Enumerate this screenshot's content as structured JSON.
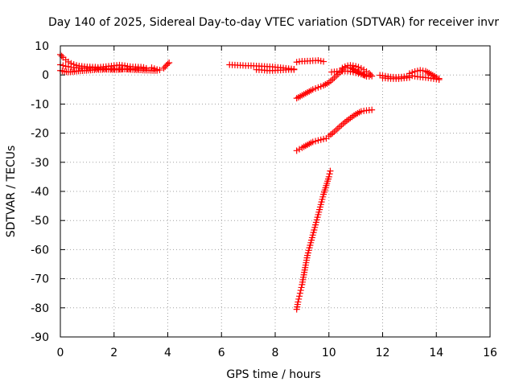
{
  "chart_data": {
    "type": "scatter",
    "title": "Day 140 of 2025, Sidereal Day-to-day VTEC variation (SDTVAR) for receiver invr",
    "xlabel": "GPS time / hours",
    "ylabel": "SDTVAR / TECUs",
    "xlim": [
      0,
      16
    ],
    "ylim": [
      -90,
      10
    ],
    "xticks": [
      "0",
      "2",
      "4",
      "6",
      "8",
      "10",
      "12",
      "14",
      "16"
    ],
    "yticks": [
      "10",
      "0",
      "-10",
      "-20",
      "-30",
      "-40",
      "-50",
      "-60",
      "-70",
      "-80",
      "-90"
    ],
    "grid": true,
    "marker": "+",
    "color": "#ff0000",
    "series": [
      {
        "name": "arc1",
        "x": [
          0.0,
          0.1,
          0.2,
          0.3,
          0.4,
          0.5,
          0.6,
          0.7,
          0.8,
          0.9,
          1.0,
          1.1,
          1.2,
          1.3,
          1.4,
          1.5,
          1.6,
          1.7,
          1.8,
          1.9,
          2.0,
          2.1,
          2.2,
          2.3,
          2.4,
          2.5,
          2.6,
          2.7,
          2.8,
          2.9,
          3.0,
          3.1
        ],
        "y": [
          7.0,
          6.0,
          5.2,
          4.5,
          4.0,
          3.6,
          3.3,
          3.1,
          3.0,
          2.9,
          2.8,
          2.8,
          2.7,
          2.7,
          2.6,
          2.7,
          2.8,
          2.9,
          3.0,
          3.1,
          3.2,
          3.3,
          3.4,
          3.3,
          3.2,
          3.0,
          2.9,
          2.8,
          2.8,
          2.7,
          2.7,
          2.6
        ]
      },
      {
        "name": "arc2",
        "x": [
          0.0,
          0.15,
          0.3,
          0.45,
          0.6,
          0.75,
          0.9,
          1.05,
          1.2,
          1.35,
          1.5,
          1.65,
          1.8,
          1.95,
          2.1,
          2.25,
          2.4,
          2.55,
          2.7,
          2.85,
          3.0,
          3.15,
          3.3,
          3.45,
          3.6
        ],
        "y": [
          1.5,
          1.2,
          1.0,
          1.1,
          1.3,
          1.4,
          1.5,
          1.6,
          1.7,
          1.8,
          1.8,
          1.9,
          1.9,
          1.8,
          1.8,
          1.9,
          2.0,
          1.9,
          1.8,
          1.7,
          1.7,
          1.6,
          1.6,
          1.5,
          1.5
        ]
      },
      {
        "name": "arc3",
        "x": [
          0.0,
          0.2,
          0.4,
          0.6,
          0.8,
          1.0,
          1.2,
          1.4,
          1.6,
          1.8,
          2.0,
          2.2,
          2.4,
          2.6,
          2.8,
          3.0,
          3.2
        ],
        "y": [
          3.5,
          3.0,
          2.7,
          2.5,
          2.4,
          2.3,
          2.3,
          2.2,
          2.2,
          2.1,
          2.1,
          2.0,
          2.0,
          2.1,
          2.2,
          2.2,
          2.3
        ]
      },
      {
        "name": "arc4",
        "x": [
          3.4,
          3.5,
          3.6,
          3.7
        ],
        "y": [
          2.5,
          2.2,
          1.9,
          1.7
        ]
      },
      {
        "name": "arc5",
        "x": [
          3.85,
          3.9,
          3.95,
          4.0,
          4.05
        ],
        "y": [
          2.3,
          2.8,
          3.3,
          3.8,
          4.2
        ]
      },
      {
        "name": "arc6",
        "x": [
          6.3,
          6.5,
          6.7,
          6.9,
          7.1,
          7.3,
          7.5,
          7.7,
          7.9,
          8.1,
          8.3,
          8.5,
          8.7
        ],
        "y": [
          3.5,
          3.4,
          3.3,
          3.2,
          3.2,
          3.1,
          3.0,
          2.9,
          2.8,
          2.6,
          2.4,
          2.2,
          2.0
        ]
      },
      {
        "name": "arc7",
        "x": [
          7.3,
          7.5,
          7.7,
          7.9,
          8.1,
          8.3,
          8.5,
          8.7
        ],
        "y": [
          1.8,
          1.7,
          1.5,
          1.5,
          1.6,
          1.7,
          1.8,
          1.8
        ]
      },
      {
        "name": "arc8",
        "x": [
          8.8,
          8.9,
          9.0,
          9.1,
          9.2,
          9.3,
          9.4,
          9.5,
          9.6,
          9.7,
          9.8
        ],
        "y": [
          4.4,
          4.6,
          4.7,
          4.7,
          4.8,
          4.8,
          4.9,
          4.9,
          5.0,
          4.8,
          4.6
        ]
      },
      {
        "name": "arc9",
        "x": [
          8.8,
          9.0,
          9.2,
          9.4,
          9.6,
          9.8,
          10.0,
          10.2,
          10.4,
          10.6,
          10.8,
          11.0,
          11.2,
          11.4
        ],
        "y": [
          -8.0,
          -7.0,
          -6.0,
          -5.0,
          -4.3,
          -3.6,
          -2.6,
          -1.0,
          0.8,
          2.5,
          2.5,
          1.5,
          0.5,
          -0.5
        ]
      },
      {
        "name": "arc10",
        "x": [
          10.1,
          10.3,
          10.5,
          10.7,
          10.9,
          11.1,
          11.3,
          11.5
        ],
        "y": [
          1.0,
          1.2,
          1.3,
          1.3,
          1.0,
          0.5,
          0.0,
          -0.5
        ]
      },
      {
        "name": "arc11",
        "x": [
          10.5,
          10.6,
          10.7,
          10.8,
          10.9,
          11.0,
          11.1,
          11.2,
          11.3,
          11.4,
          11.5,
          11.6
        ],
        "y": [
          2.4,
          2.9,
          3.2,
          3.3,
          3.2,
          3.0,
          2.7,
          2.3,
          1.8,
          1.2,
          0.6,
          -0.4
        ]
      },
      {
        "name": "arc12",
        "x": [
          11.9,
          12.1,
          12.3,
          12.5,
          12.7,
          12.9,
          13.0
        ],
        "y": [
          -0.1,
          -0.4,
          -0.7,
          -0.8,
          -0.7,
          -0.5,
          -0.4
        ]
      },
      {
        "name": "arc13",
        "x": [
          12.0,
          12.2,
          12.4,
          12.6,
          12.8,
          13.0
        ],
        "y": [
          -1.0,
          -1.2,
          -1.3,
          -1.3,
          -1.1,
          -0.9
        ]
      },
      {
        "name": "arc14",
        "x": [
          13.0,
          13.2,
          13.4,
          13.6,
          13.8,
          14.0,
          14.1
        ],
        "y": [
          0.5,
          1.2,
          1.6,
          1.3,
          0.3,
          -0.8,
          -1.2
        ]
      },
      {
        "name": "arc15",
        "x": [
          13.1,
          13.3,
          13.5,
          13.7,
          13.9,
          14.1
        ],
        "y": [
          -0.3,
          -0.6,
          -0.8,
          -1.0,
          -1.3,
          -1.6
        ]
      },
      {
        "name": "arc16",
        "x": [
          8.8,
          8.9,
          9.0,
          9.2,
          9.4,
          9.6,
          9.8,
          9.9,
          10.0,
          10.2,
          10.4,
          10.6,
          10.8,
          11.0,
          11.2,
          11.4,
          11.6
        ],
        "y": [
          -26.0,
          -25.5,
          -25.0,
          -24.0,
          -23.0,
          -22.5,
          -22.0,
          -21.8,
          -21.0,
          -19.5,
          -17.8,
          -16.2,
          -14.8,
          -13.5,
          -12.5,
          -12.2,
          -12.0
        ]
      },
      {
        "name": "arc17",
        "x": [
          8.8,
          8.85,
          8.9,
          8.95,
          9.0,
          9.05,
          9.1,
          9.15,
          9.2,
          9.3,
          9.4,
          9.5,
          9.6,
          9.7,
          9.8,
          9.9,
          10.0,
          10.05
        ],
        "y": [
          -80.5,
          -78.0,
          -76.0,
          -74.0,
          -72.0,
          -69.5,
          -67.0,
          -64.5,
          -62.0,
          -58.5,
          -55.0,
          -51.5,
          -48.0,
          -44.5,
          -41.0,
          -38.0,
          -35.0,
          -33.0
        ]
      }
    ]
  }
}
